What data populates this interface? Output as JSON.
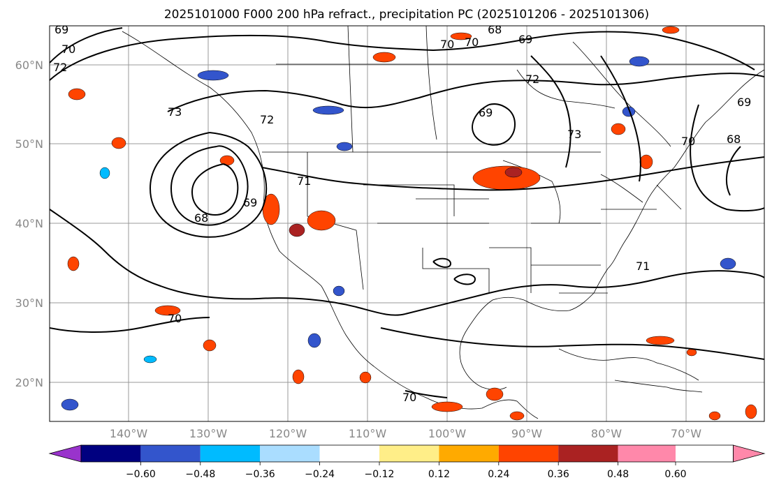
{
  "title": "2025101000 F000 200 hPa refract., precipitation PC (2025101206 - 2025101306)",
  "map": {
    "lat_ticks": [
      "60°N",
      "50°N",
      "40°N",
      "30°N",
      "20°N"
    ],
    "lon_ticks": [
      "140°W",
      "130°W",
      "120°W",
      "110°W",
      "100°W",
      "90°W",
      "80°W",
      "70°W"
    ],
    "contour_labels": [
      "69",
      "70",
      "72",
      "73",
      "71",
      "68",
      "69",
      "72",
      "70",
      "68",
      "69",
      "70",
      "71",
      "69",
      "73",
      "70",
      "68",
      "69",
      "72",
      "70",
      "70"
    ],
    "land_color": "#ffffff",
    "grid_color": "#999999",
    "contour_color": "#000000"
  },
  "colorbar": {
    "colors": [
      "#9933cc",
      "#000080",
      "#3355cc",
      "#00bbff",
      "#aaddff",
      "#ffffff",
      "#ffee88",
      "#ffaa00",
      "#ff4400",
      "#aa2222",
      "#ff88aa"
    ],
    "labels": [
      "−0.60",
      "−0.48",
      "−0.36",
      "−0.24",
      "−0.12",
      "0.12",
      "0.24",
      "0.36",
      "0.48",
      "0.60"
    ]
  }
}
